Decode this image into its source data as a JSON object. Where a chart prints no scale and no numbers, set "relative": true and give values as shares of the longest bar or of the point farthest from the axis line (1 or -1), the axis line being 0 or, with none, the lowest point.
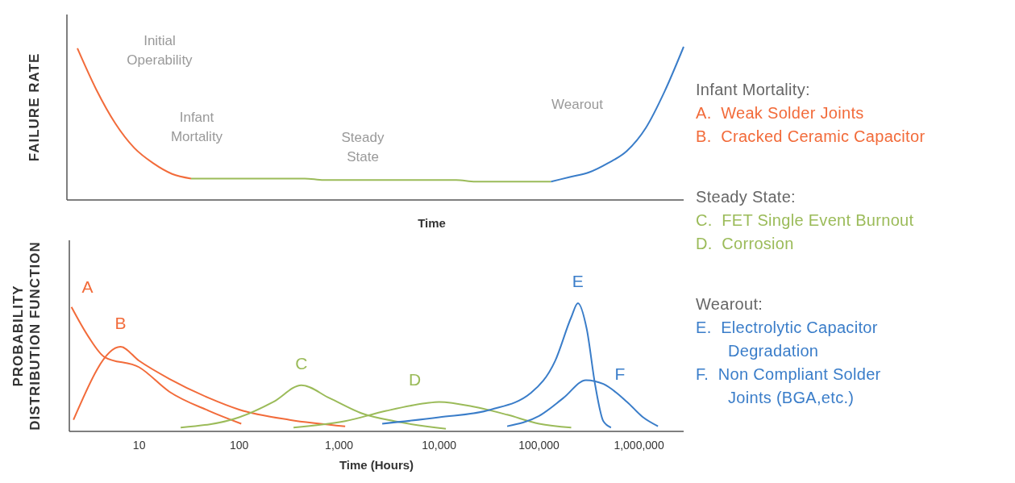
{
  "chart_data": [
    {
      "type": "line",
      "relative": true,
      "xlabel": "Time",
      "ylabel": "FAILURE RATE",
      "tick_labels": false,
      "categories": [
        null,
        null,
        null,
        null,
        null,
        null,
        null,
        null,
        null,
        null,
        null,
        null,
        null,
        null,
        null,
        null,
        null,
        null,
        null,
        null,
        null,
        null,
        null,
        null,
        null,
        null,
        null,
        null,
        null,
        null,
        null,
        null,
        null
      ],
      "annotations": [
        "Initial Operability",
        "Infant Mortality",
        "Steady State",
        "Wearout"
      ],
      "series": [
        {
          "color": "#f26b3a",
          "values": [
            0.99,
            0.72,
            0.5,
            0.34,
            0.24,
            0.17,
            0.14,
            null,
            null,
            null,
            null,
            null,
            null,
            null,
            null,
            null,
            null,
            null,
            null,
            null,
            null,
            null,
            null,
            null,
            null,
            null,
            null,
            null,
            null,
            null,
            null,
            null,
            null
          ]
        },
        {
          "color": "#9bbb59",
          "values": [
            null,
            null,
            null,
            null,
            null,
            null,
            0.14,
            0.14,
            0.14,
            0.14,
            0.14,
            0.14,
            0.14,
            0.13,
            0.13,
            0.13,
            0.13,
            0.13,
            0.13,
            0.13,
            0.13,
            0.12,
            0.12,
            0.12,
            0.12,
            0.12,
            null,
            null,
            null,
            null,
            null,
            null,
            null
          ]
        },
        {
          "color": "#3a7dc9",
          "values": [
            null,
            null,
            null,
            null,
            null,
            null,
            null,
            null,
            null,
            null,
            null,
            null,
            null,
            null,
            null,
            null,
            null,
            null,
            null,
            null,
            null,
            null,
            null,
            null,
            null,
            0.12,
            0.15,
            0.18,
            0.24,
            0.32,
            0.47,
            0.71,
            1.0
          ]
        }
      ]
    },
    {
      "type": "line",
      "relative": true,
      "log": "x",
      "xlabel": "Time (Hours)",
      "ylabel": "PROBABILITY DISTRIBUTION FUNCTION",
      "tick_labels": "x",
      "xlim": [
        2,
        2800000
      ],
      "xticks": [
        10,
        100,
        {
          "value": 1000,
          "label": "1,000"
        },
        {
          "value": 10000,
          "label": "10,000"
        },
        {
          "value": 100000,
          "label": "100,000"
        },
        {
          "value": 1000000,
          "label": "1,000,000"
        }
      ],
      "series": [
        {
          "name": "A",
          "color": "#f26b3a",
          "x": [
            2.1,
            3.1,
            4.5,
            10,
            20,
            50,
            105
          ],
          "values": [
            0.97,
            0.74,
            0.58,
            0.5,
            0.31,
            0.16,
            0.06
          ]
        },
        {
          "name": "B",
          "color": "#f26b3a",
          "x": [
            2.2,
            6.5,
            10,
            20,
            50,
            100,
            320,
            1150
          ],
          "values": [
            0.09,
            0.66,
            0.55,
            0.41,
            0.26,
            0.17,
            0.09,
            0.04
          ]
        },
        {
          "name": "C",
          "color": "#9bbb59",
          "x": [
            26,
            100,
            220,
            420,
            800,
            1700,
            3550,
            11700
          ],
          "values": [
            0.03,
            0.11,
            0.23,
            0.36,
            0.26,
            0.14,
            0.08,
            0.02
          ]
        },
        {
          "name": "D",
          "color": "#9bbb59",
          "x": [
            350,
            1150,
            2950,
            7400,
            10000,
            23000,
            48000,
            100000,
            210000
          ],
          "values": [
            0.03,
            0.08,
            0.16,
            0.22,
            0.23,
            0.19,
            0.13,
            0.06,
            0.03
          ]
        },
        {
          "name": "E",
          "color": "#3a7dc9",
          "x": [
            2700,
            10000,
            33000,
            83000,
            145000,
            210000,
            245000,
            300000,
            365000,
            440000,
            525000
          ],
          "values": [
            0.06,
            0.11,
            0.17,
            0.3,
            0.55,
            0.89,
            1.0,
            0.8,
            0.36,
            0.08,
            0.03
          ]
        },
        {
          "name": "F",
          "color": "#3a7dc9",
          "x": [
            48000,
            100000,
            175000,
            295000,
            440000,
            760000,
            1100000,
            1550000
          ],
          "values": [
            0.04,
            0.12,
            0.26,
            0.4,
            0.37,
            0.23,
            0.11,
            0.04
          ]
        }
      ]
    },
    {
      "type": "other",
      "annotations": [
        "Infant Mortality:",
        "A.  Weak Solder Joints",
        "B.  Cracked Ceramic Capacitor",
        "Steady State:",
        "C.  FET Single Event Burnout",
        "D.  Corrosion",
        "Wearout:",
        "E.  Electrolytic Capacitor Degradation",
        "F.  Non Compliant Solder Joints (BGA,etc.)"
      ],
      "colors": [
        "#666666",
        "#f26b3a",
        "#f26b3a",
        "#666666",
        "#9bbb59",
        "#9bbb59",
        "#666666",
        "#3a7dc9",
        "#3a7dc9"
      ]
    }
  ]
}
